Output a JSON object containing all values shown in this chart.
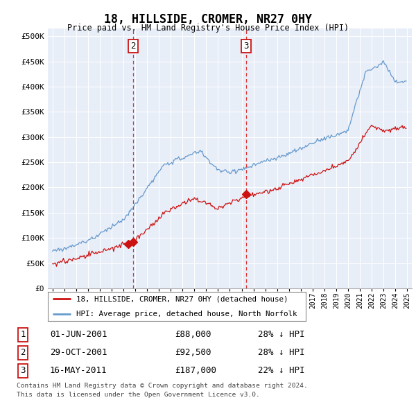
{
  "title": "18, HILLSIDE, CROMER, NR27 0HY",
  "subtitle": "Price paid vs. HM Land Registry's House Price Index (HPI)",
  "ylabel_ticks": [
    0,
    50000,
    100000,
    150000,
    200000,
    250000,
    300000,
    350000,
    400000,
    450000,
    500000
  ],
  "ylim": [
    0,
    515000
  ],
  "xlim_start": 1994.6,
  "xlim_end": 2025.4,
  "legend_entries": [
    "18, HILLSIDE, CROMER, NR27 0HY (detached house)",
    "HPI: Average price, detached house, North Norfolk"
  ],
  "line_colors": [
    "#cc1111",
    "#6699cc"
  ],
  "vline_color": "#dd3333",
  "background_color": "#e8eef8",
  "grid_color": "#ffffff",
  "vline_dates": [
    2001.833,
    2011.375
  ],
  "transaction_dates": [
    2001.417,
    2001.833,
    2011.375
  ],
  "transaction_prices": [
    88000,
    92500,
    187000
  ],
  "transaction_labels": [
    {
      "num": 1,
      "date_str": "01-JUN-2001",
      "price": "£88,000",
      "hpi": "28% ↓ HPI"
    },
    {
      "num": 2,
      "date_str": "29-OCT-2001",
      "price": "£92,500",
      "hpi": "28% ↓ HPI"
    },
    {
      "num": 3,
      "date_str": "16-MAY-2011",
      "price": "£187,000",
      "hpi": "22% ↓ HPI"
    }
  ],
  "footer": [
    "Contains HM Land Registry data © Crown copyright and database right 2024.",
    "This data is licensed under the Open Government Licence v3.0."
  ]
}
